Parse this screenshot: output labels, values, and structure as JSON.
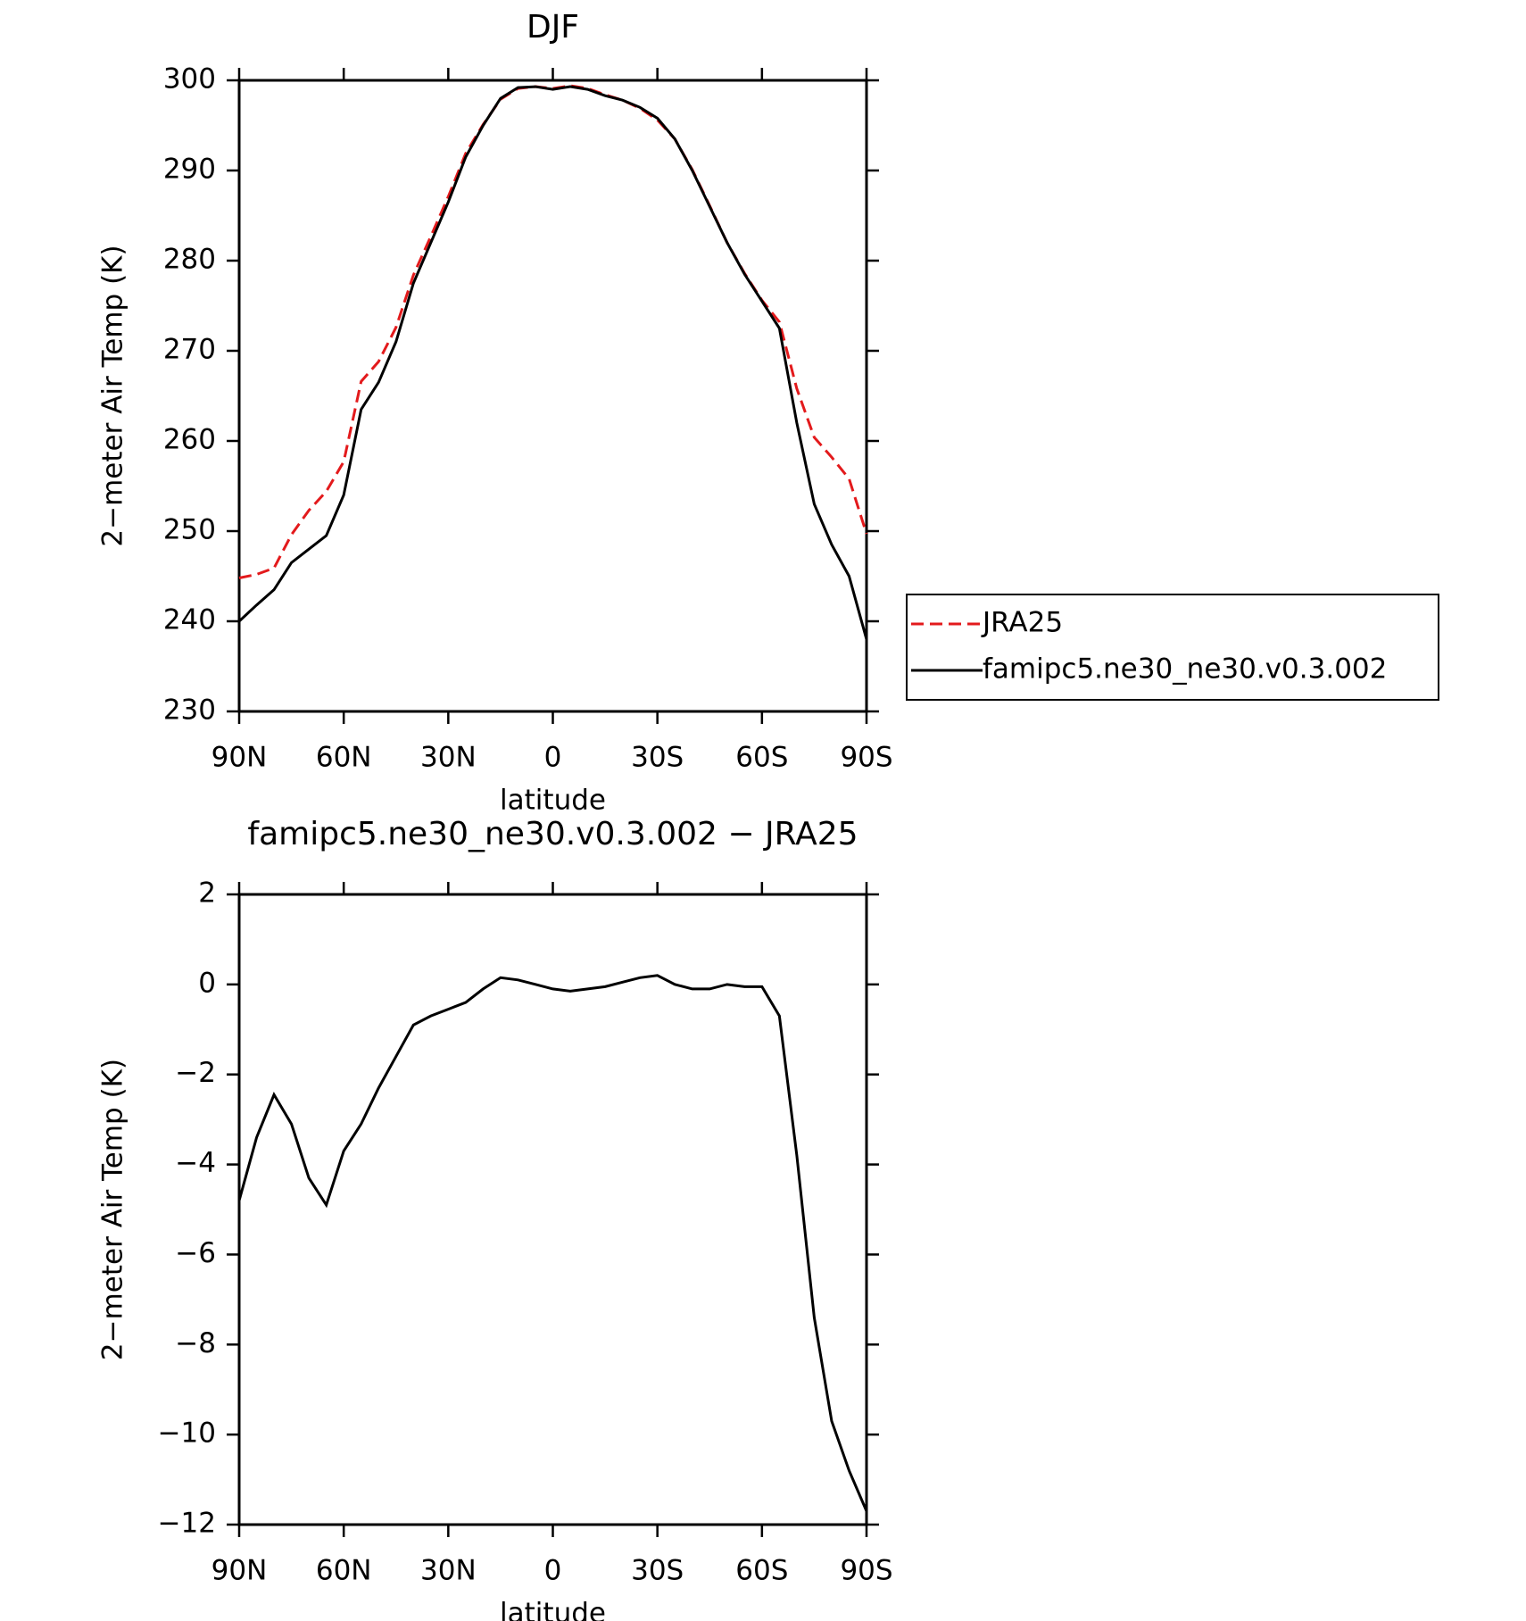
{
  "chart_data": [
    {
      "type": "line",
      "title": "DJF",
      "xlabel": "latitude",
      "ylabel": "2−meter Air Temp (K)",
      "x": [
        90,
        85,
        80,
        75,
        70,
        65,
        60,
        55,
        50,
        45,
        40,
        35,
        30,
        25,
        20,
        15,
        10,
        5,
        0,
        -5,
        -10,
        -15,
        -20,
        -25,
        -30,
        -35,
        -40,
        -45,
        -50,
        -55,
        -60,
        -65,
        -70,
        -75,
        -80,
        -85,
        -90
      ],
      "xlim": [
        90,
        -90
      ],
      "xticks": [
        {
          "value": 90,
          "label": "90N"
        },
        {
          "value": 60,
          "label": "60N"
        },
        {
          "value": 30,
          "label": "30N"
        },
        0,
        {
          "value": -30,
          "label": "30S"
        },
        {
          "value": -60,
          "label": "60S"
        },
        {
          "value": -90,
          "label": "90S"
        }
      ],
      "ylim": [
        230,
        300
      ],
      "yticks": [
        230,
        240,
        250,
        260,
        270,
        280,
        290,
        300
      ],
      "legend": "right",
      "series": [
        {
          "name": "JRA25",
          "color": "#e31a1c",
          "dash": true,
          "values": [
            244.8,
            245.2,
            245.9,
            249.6,
            252.3,
            254.4,
            257.7,
            266.6,
            268.8,
            272.6,
            278.4,
            282.7,
            287.1,
            291.9,
            295.1,
            297.9,
            299.1,
            299.3,
            299.1,
            299.4,
            299.1,
            298.4,
            297.8,
            296.9,
            295.6,
            293.5,
            290.1,
            286.1,
            282,
            278.6,
            275.6,
            273.2,
            265.8,
            260.4,
            258.2,
            255.8,
            249.7
          ]
        },
        {
          "name": "famipc5.ne30_ne30.v0.3.002",
          "color": "#000000",
          "dash": false,
          "values": [
            240,
            241.8,
            243.5,
            246.5,
            248,
            249.5,
            254,
            263.5,
            266.5,
            271,
            277.5,
            282,
            286.5,
            291.5,
            295,
            298,
            299.2,
            299.3,
            299,
            299.3,
            299,
            298.3,
            297.8,
            297,
            295.8,
            293.5,
            290,
            286,
            282,
            278.5,
            275.5,
            272.5,
            262,
            253,
            248.5,
            245,
            238
          ]
        }
      ]
    },
    {
      "type": "line",
      "title": "famipc5.ne30_ne30.v0.3.002 − JRA25",
      "xlabel": "latitude",
      "ylabel": "2−meter Air Temp (K)",
      "x": [
        90,
        85,
        80,
        75,
        70,
        65,
        60,
        55,
        50,
        45,
        40,
        35,
        30,
        25,
        20,
        15,
        10,
        5,
        0,
        -5,
        -10,
        -15,
        -20,
        -25,
        -30,
        -35,
        -40,
        -45,
        -50,
        -55,
        -60,
        -65,
        -70,
        -75,
        -80,
        -85,
        -90
      ],
      "xlim": [
        90,
        -90
      ],
      "xticks": [
        {
          "value": 90,
          "label": "90N"
        },
        {
          "value": 60,
          "label": "60N"
        },
        {
          "value": 30,
          "label": "30N"
        },
        0,
        {
          "value": -30,
          "label": "30S"
        },
        {
          "value": -60,
          "label": "60S"
        },
        {
          "value": -90,
          "label": "90S"
        }
      ],
      "ylim": [
        -12,
        2
      ],
      "yticks": [
        {
          "value": -12,
          "label": "−12"
        },
        {
          "value": -10,
          "label": "−10"
        },
        {
          "value": -8,
          "label": "−8"
        },
        {
          "value": -6,
          "label": "−6"
        },
        {
          "value": -4,
          "label": "−4"
        },
        {
          "value": -2,
          "label": "−2"
        },
        0,
        2
      ],
      "series": [
        {
          "color": "#000000",
          "dash": false,
          "values": [
            -4.8,
            -3.4,
            -2.45,
            -3.1,
            -4.3,
            -4.9,
            -3.7,
            -3.1,
            -2.3,
            -1.6,
            -0.9,
            -0.7,
            -0.55,
            -0.4,
            -0.1,
            0.15,
            0.1,
            0,
            -0.1,
            -0.15,
            -0.1,
            -0.05,
            0.05,
            0.15,
            0.2,
            0,
            -0.1,
            -0.1,
            0,
            -0.05,
            -0.05,
            -0.7,
            -3.8,
            -7.4,
            -9.7,
            -10.8,
            -11.7
          ]
        }
      ]
    }
  ]
}
